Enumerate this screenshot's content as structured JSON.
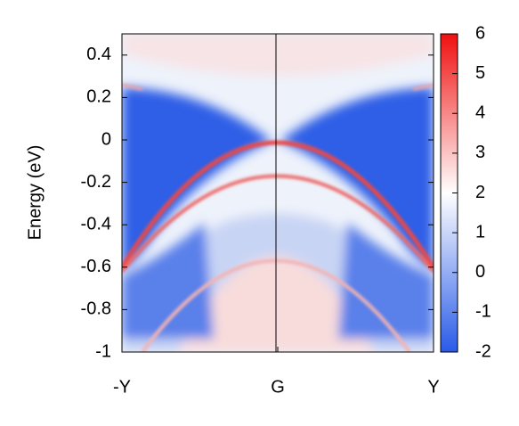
{
  "chart_data": {
    "type": "heatmap",
    "ylabel": "Energy (eV)",
    "categories": [
      "-Y",
      "G",
      "Y"
    ],
    "ylim": [
      -1,
      0.5
    ],
    "yticks": [
      -1,
      -0.8,
      -0.6,
      -0.4,
      -0.2,
      0,
      0.2,
      0.4
    ],
    "clim": [
      -2,
      6
    ],
    "cticks": [
      -2,
      -1,
      0,
      1,
      2,
      3,
      4,
      5,
      6
    ],
    "colormap": [
      "#2a5be8",
      "#ffffff",
      "#f01010"
    ]
  }
}
